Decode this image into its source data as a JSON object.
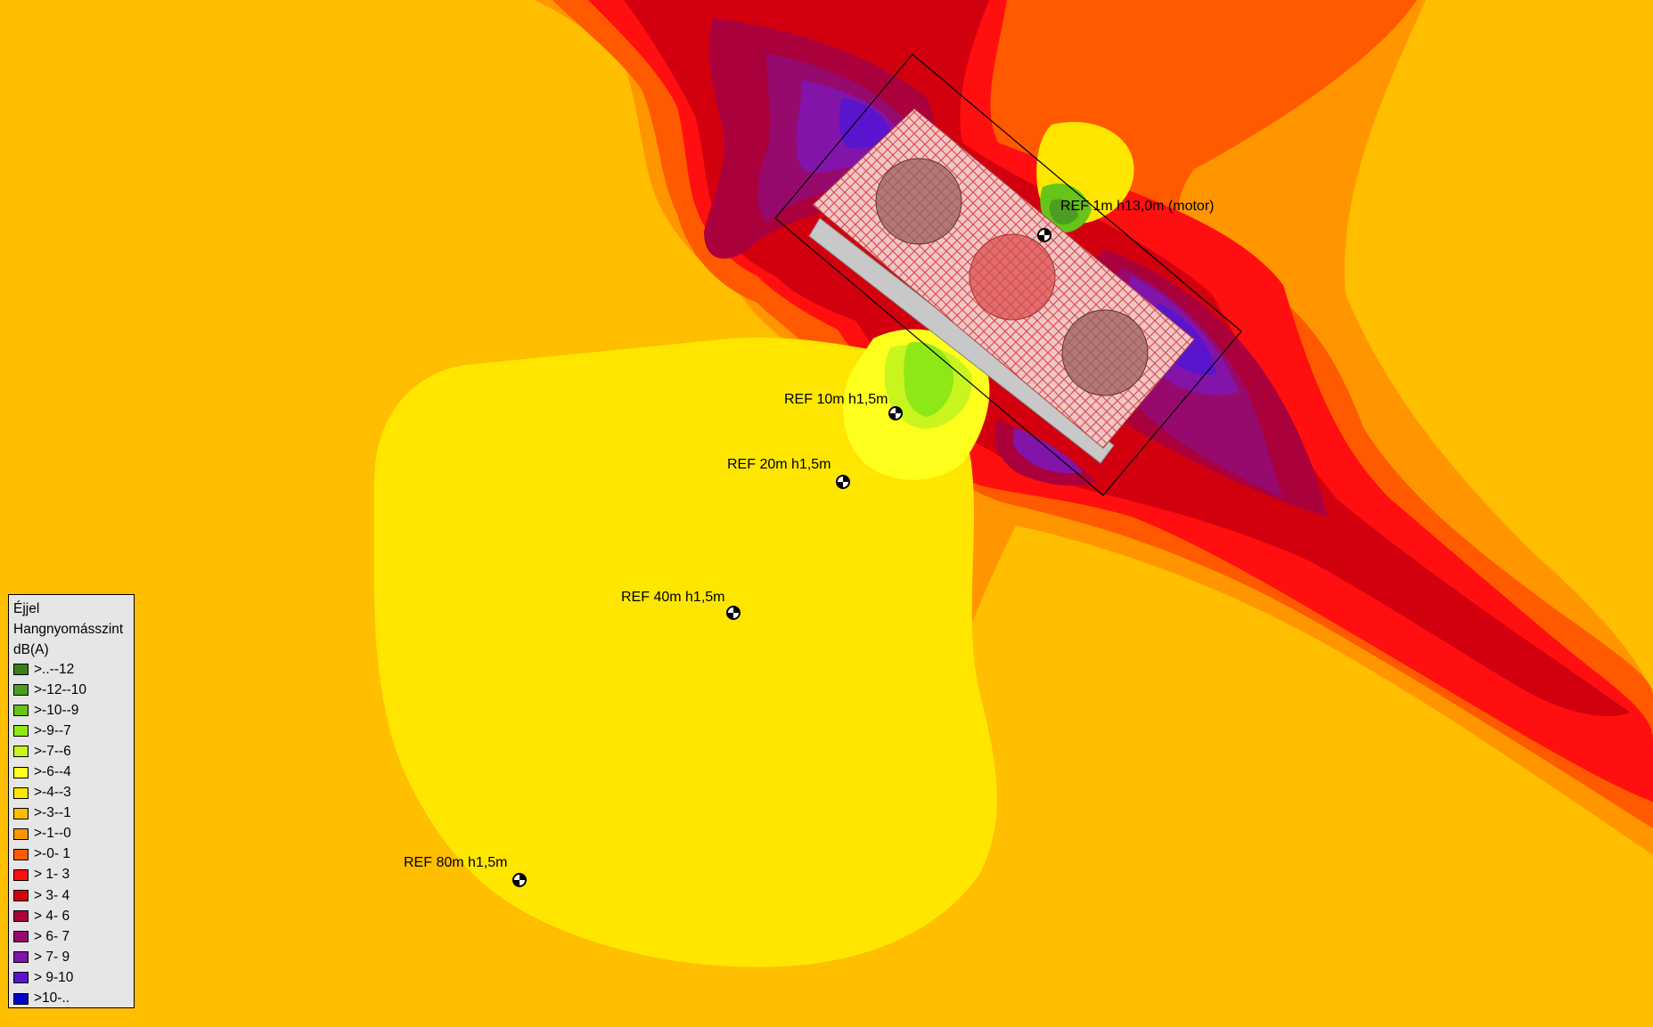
{
  "legend": {
    "title": "Éjjel",
    "quantity": "Hangnyomásszint",
    "unit": "dB(A)",
    "items": [
      {
        "label": ">..--12",
        "color": "#3a7f19"
      },
      {
        "label": ">-12--10",
        "color": "#4c9e22"
      },
      {
        "label": ">-10--9",
        "color": "#67c418"
      },
      {
        "label": ">-9--7",
        "color": "#8ee816"
      },
      {
        "label": ">-7--6",
        "color": "#c8f51e"
      },
      {
        "label": ">-6--4",
        "color": "#ffff1e"
      },
      {
        "label": ">-4--3",
        "color": "#ffe600"
      },
      {
        "label": ">-3--1",
        "color": "#ffbe00"
      },
      {
        "label": ">-1--0",
        "color": "#ff9600"
      },
      {
        "label": ">-0- 1",
        "color": "#ff5a00"
      },
      {
        "label": "> 1- 3",
        "color": "#ff0f0f"
      },
      {
        "label": "> 3- 4",
        "color": "#d2000f"
      },
      {
        "label": "> 4- 6",
        "color": "#aa003c"
      },
      {
        "label": "> 6- 7",
        "color": "#960a6e"
      },
      {
        "label": "> 7- 9",
        "color": "#8214aa"
      },
      {
        "label": "> 9-10",
        "color": "#5a14cd"
      },
      {
        "label": ">10-..",
        "color": "#0000cd"
      }
    ]
  },
  "receivers": [
    {
      "label": "REF 1m h13,0m (motor)",
      "name": "receiver-ref-1m"
    },
    {
      "label": "REF 10m h1,5m",
      "name": "receiver-ref-10m"
    },
    {
      "label": "REF 20m h1,5m",
      "name": "receiver-ref-20m"
    },
    {
      "label": "REF 40m h1,5m",
      "name": "receiver-ref-40m"
    },
    {
      "label": "REF 80m h1,5m",
      "name": "receiver-ref-80m"
    }
  ]
}
